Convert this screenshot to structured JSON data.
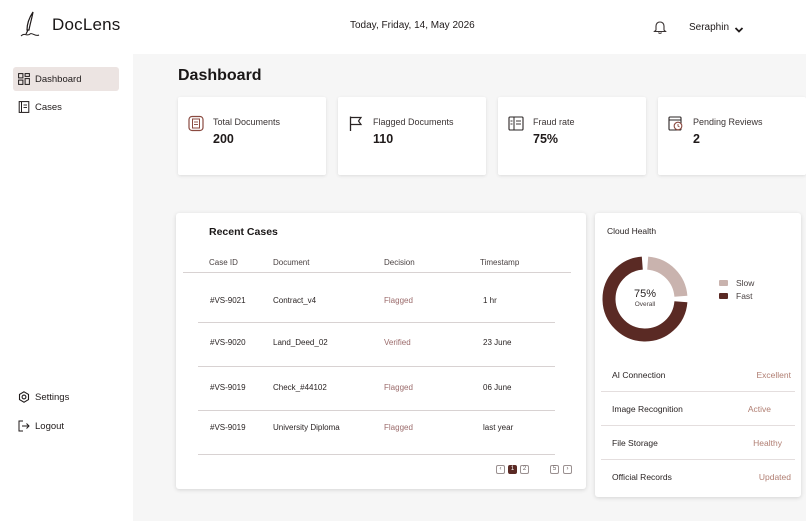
{
  "app": {
    "brand": "DocLens",
    "date_text": "Today, Friday, 14, May 2026",
    "user_name": "Seraphin"
  },
  "icons": {
    "logo": "quill-pen-logo",
    "bell": "bell-icon",
    "user_menu": "chevron-down-icon"
  },
  "sidebar": {
    "items": [
      {
        "label": "Dashboard",
        "icon": "grid-icon",
        "active": true
      },
      {
        "label": "Cases",
        "icon": "document-icon",
        "active": false
      }
    ],
    "bottom": [
      {
        "label": "Settings",
        "icon": "gear-icon"
      },
      {
        "label": "Logout",
        "icon": "logout-icon"
      }
    ]
  },
  "page": {
    "title": "Dashboard"
  },
  "stats": [
    {
      "label": "Total Documents",
      "value": "200",
      "icon": "documents-icon"
    },
    {
      "label": "Flagged Documents",
      "value": "110",
      "icon": "flag-icon"
    },
    {
      "label": "Fraud rate",
      "value": "75%",
      "icon": "report-icon"
    },
    {
      "label": "Pending Reviews",
      "value": "2",
      "icon": "clock-document-icon"
    }
  ],
  "recent_cases": {
    "title": "Recent Cases",
    "columns": [
      "Case ID",
      "Document",
      "Decision",
      "Timestamp"
    ],
    "rows": [
      {
        "id": "#VS-9021",
        "document": "Contract_v4",
        "decision": "Flagged",
        "timestamp": "1 hr"
      },
      {
        "id": "#VS-9020",
        "document": "Land_Deed_02",
        "decision": "Verified",
        "timestamp": "23 June"
      },
      {
        "id": "#VS-9019",
        "document": "Check_#44102",
        "decision": "Flagged",
        "timestamp": "06 June"
      },
      {
        "id": "#VS-9019",
        "document": "University Diploma",
        "decision": "Flagged",
        "timestamp": "last year"
      }
    ],
    "pagination": {
      "pages": [
        "1",
        "2",
        "5"
      ],
      "current": "1",
      "prev_icon": "chevron-left-icon",
      "next_icon": "chevron-right-icon"
    }
  },
  "cloud_health": {
    "title": "Cloud Health",
    "overall_value": "75%",
    "overall_label": "Overall",
    "fast_fraction": 0.75,
    "legend": [
      {
        "label": "Slow",
        "color": "#c9b3ae"
      },
      {
        "label": "Fast",
        "color": "#5a2a24"
      }
    ],
    "rows": [
      {
        "label": "AI Connection",
        "value": "Excellent"
      },
      {
        "label": "Image Recognition",
        "value": "Active"
      },
      {
        "label": "File Storage",
        "value": "Healthy"
      },
      {
        "label": "Official Records",
        "value": "Updated"
      }
    ]
  },
  "colors": {
    "accent": "#5a2a24",
    "accent_light": "#c9b3ae",
    "flagged": "#9b6b6b",
    "status": "#b07e72",
    "nav_active_bg": "#ece4e2"
  }
}
